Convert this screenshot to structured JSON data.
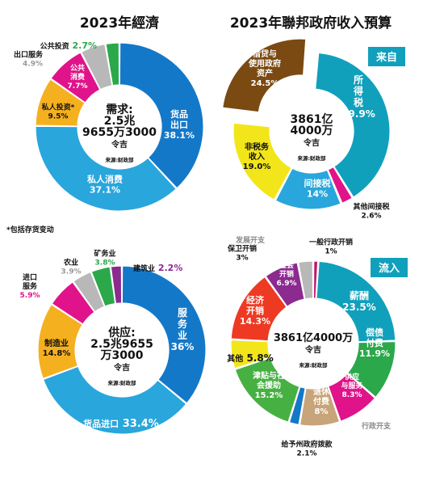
{
  "chart_data": [
    {
      "type": "pie",
      "title": "2023年經濟",
      "center": [
        "需求:",
        "2.5兆",
        "9655万3000",
        "令吉"
      ],
      "source": "来源:财政部",
      "note": "*包括存货变动",
      "slices": [
        {
          "name": "货品出口",
          "value": 38.1,
          "pct": "38.1%",
          "color": "#1478c8"
        },
        {
          "name": "私人消费",
          "value": 37.1,
          "pct": "37.1%",
          "color": "#29a6dc"
        },
        {
          "name": "私人投资*",
          "value": 9.5,
          "pct": "9.5%",
          "color": "#f5b020"
        },
        {
          "name": "公共消费",
          "value": 7.7,
          "pct": "7.7%",
          "color": "#e0138a"
        },
        {
          "name": "出口服务",
          "value": 4.9,
          "pct": "4.9%",
          "color": "#b8b8b8"
        },
        {
          "name": "公共投资",
          "value": 2.7,
          "pct": "2.7%",
          "color": "#2ba84a"
        }
      ]
    },
    {
      "type": "pie",
      "title": "2023年聯邦政府收入預算",
      "badge": "来自",
      "center": [
        "3861亿",
        "4000万",
        "令吉"
      ],
      "source": "来源:财政部",
      "slices": [
        {
          "name": "所得税",
          "value": 39.9,
          "pct": "39.9%",
          "color": "#10a0bc"
        },
        {
          "name": "其他间接税",
          "value": 2.6,
          "pct": "2.6%",
          "color": "#e0138a"
        },
        {
          "name": "间接税",
          "value": 14,
          "pct": "14%",
          "color": "#29a6dc"
        },
        {
          "name": "非税务收入",
          "value": 19.0,
          "pct": "19.0%",
          "color": "#f2e61a"
        },
        {
          "name": "借贷与使用政府资产",
          "value": 24.5,
          "pct": "24.5%",
          "color": "#7a4a12"
        }
      ]
    },
    {
      "type": "pie",
      "center": [
        "供应:",
        "2.5兆9655",
        "万3000",
        "令吉"
      ],
      "source": "来源:财政部",
      "slices": [
        {
          "name": "服务业",
          "value": 36,
          "pct": "36%",
          "color": "#1478c8"
        },
        {
          "name": "货品进口",
          "value": 33.4,
          "pct": "33.4%",
          "color": "#29a6dc"
        },
        {
          "name": "制造业",
          "value": 14.8,
          "pct": "14.8%",
          "color": "#f5b020"
        },
        {
          "name": "进口服务",
          "value": 5.9,
          "pct": "5.9%",
          "color": "#e0138a"
        },
        {
          "name": "农业",
          "value": 3.9,
          "pct": "3.9%",
          "color": "#b8b8b8"
        },
        {
          "name": "矿务业",
          "value": 3.8,
          "pct": "3.8%",
          "color": "#2ba84a"
        },
        {
          "name": "建筑业",
          "value": 2.2,
          "pct": "2.2%",
          "color": "#8b2a8f"
        }
      ]
    },
    {
      "type": "pie",
      "badge": "流入",
      "center": [
        "3861亿4000万",
        "令吉"
      ],
      "source": "来源:财政部",
      "slices": [
        {
          "name": "一般行政开销",
          "value": 1,
          "pct": "1%",
          "color": "#c0146e"
        },
        {
          "name": "薪酬",
          "value": 23.5,
          "pct": "23.5%",
          "color": "#10a0bc"
        },
        {
          "name": "偿债付费",
          "value": 11.9,
          "pct": "11.9%",
          "color": "#2ba84a"
        },
        {
          "name": "供应与服务",
          "value": 8.3,
          "pct": "8.3%",
          "color": "#e0138a"
        },
        {
          "name": "行政开支",
          "value": 0,
          "pct": "",
          "color": "#8a8a8a"
        },
        {
          "name": "退休付费",
          "value": 8,
          "pct": "8%",
          "color": "#c8a47a"
        },
        {
          "name": "给予州政府拨款",
          "value": 2.1,
          "pct": "2.1%",
          "color": "#1478c8"
        },
        {
          "name": "津贴与社会援助",
          "value": 15.2,
          "pct": "15.2%",
          "color": "#47b043"
        },
        {
          "name": "其他",
          "value": 5.8,
          "pct": "5.8%",
          "color": "#f2e61a"
        },
        {
          "name": "经济开销",
          "value": 14.3,
          "pct": "14.3%",
          "color": "#ee3a23"
        },
        {
          "name": "社会开销",
          "value": 6.9,
          "pct": "6.9%",
          "color": "#8b2a8f"
        },
        {
          "name": "保卫开销",
          "value": 3,
          "pct": "3%",
          "color": "#b8b8b8"
        },
        {
          "name": "发展开支",
          "value": 0,
          "pct": "",
          "color": "#8a8a8a"
        }
      ]
    }
  ]
}
